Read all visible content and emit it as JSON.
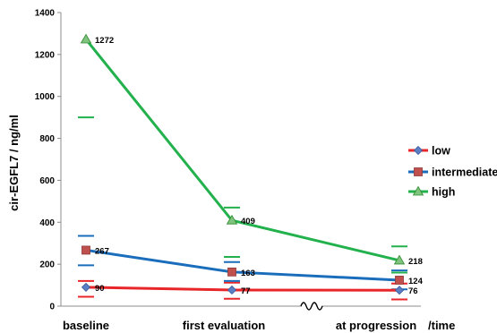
{
  "chart_data": {
    "type": "line",
    "ylabel": "cir-EGFL7 / ng/ml",
    "x_unit_label": "/time",
    "categories": [
      "baseline",
      "first evaluation",
      "at progression"
    ],
    "ylim": [
      0,
      1400
    ],
    "yticks": [
      0,
      200,
      400,
      600,
      800,
      1000,
      1200,
      1400
    ],
    "grid": false,
    "legend_position": "right",
    "axis_break_between": [
      "first evaluation",
      "at progression"
    ],
    "series": [
      {
        "name": "low",
        "color": "#e8262a",
        "marker": "diamond",
        "marker_color": "#5b7fc4",
        "values": [
          90,
          77,
          76
        ],
        "error_low": [
          45,
          35,
          32
        ],
        "error_high": [
          120,
          112,
          108
        ]
      },
      {
        "name": "intermediate",
        "color": "#1a6dbb",
        "marker": "square",
        "marker_color": "#c0504d",
        "values": [
          267,
          163,
          124
        ],
        "error_low": [
          195,
          120,
          80
        ],
        "error_high": [
          335,
          210,
          170
        ]
      },
      {
        "name": "high",
        "color": "#22b14c",
        "marker": "triangle",
        "marker_color": "#7ec37e",
        "values": [
          1272,
          409,
          218
        ],
        "error_low": [
          null,
          235,
          160
        ],
        "error_high": [
          900,
          470,
          285
        ]
      }
    ]
  }
}
